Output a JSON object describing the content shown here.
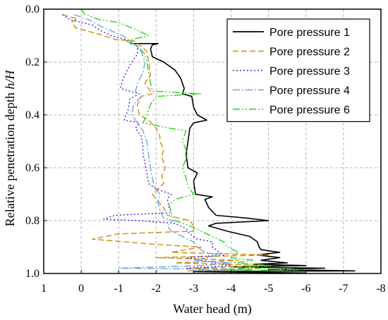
{
  "chart_data": {
    "type": "line",
    "xlabel": "Water head (m)",
    "ylabel": "Relative penetration depth h/H",
    "xlim": [
      1,
      -8
    ],
    "ylim": [
      0.0,
      1.0
    ],
    "x_ticks": [
      "1",
      "0",
      "-1",
      "-2",
      "-3",
      "-4",
      "-5",
      "-6",
      "-7",
      "-8"
    ],
    "y_ticks": [
      "0.0",
      "0.2",
      "0.4",
      "0.6",
      "0.8",
      "1.0"
    ],
    "grid": true,
    "legend_position": "top-right",
    "series": [
      {
        "name": "Pore pressure 1",
        "color": "#000000",
        "dash": "solid",
        "points": [
          [
            -1.3,
            0.13
          ],
          [
            -1.5,
            0.13
          ],
          [
            -1.8,
            0.13
          ],
          [
            -2.05,
            0.13
          ],
          [
            -1.9,
            0.135
          ],
          [
            -1.85,
            0.15
          ],
          [
            -1.9,
            0.18
          ],
          [
            -2.2,
            0.2
          ],
          [
            -2.5,
            0.23
          ],
          [
            -2.65,
            0.26
          ],
          [
            -2.75,
            0.3
          ],
          [
            -2.7,
            0.32
          ],
          [
            -2.95,
            0.33
          ],
          [
            -3.0,
            0.37
          ],
          [
            -3.1,
            0.4
          ],
          [
            -3.35,
            0.42
          ],
          [
            -3.0,
            0.43
          ],
          [
            -2.9,
            0.45
          ],
          [
            -2.85,
            0.5
          ],
          [
            -2.8,
            0.55
          ],
          [
            -2.85,
            0.6
          ],
          [
            -3.1,
            0.62
          ],
          [
            -3.0,
            0.65
          ],
          [
            -3.05,
            0.7
          ],
          [
            -3.5,
            0.71
          ],
          [
            -3.3,
            0.72
          ],
          [
            -3.4,
            0.75
          ],
          [
            -3.6,
            0.78
          ],
          [
            -4.4,
            0.79
          ],
          [
            -5.0,
            0.8
          ],
          [
            -3.6,
            0.81
          ],
          [
            -3.4,
            0.82
          ],
          [
            -3.9,
            0.84
          ],
          [
            -4.5,
            0.86
          ],
          [
            -4.7,
            0.88
          ],
          [
            -4.75,
            0.9
          ],
          [
            -4.8,
            0.91
          ],
          [
            -5.3,
            0.92
          ],
          [
            -4.7,
            0.93
          ],
          [
            -5.3,
            0.94
          ],
          [
            -4.8,
            0.95
          ],
          [
            -5.5,
            0.96
          ],
          [
            -4.6,
            0.965
          ],
          [
            -6.0,
            0.97
          ],
          [
            -4.0,
            0.975
          ],
          [
            -6.5,
            0.98
          ],
          [
            -5.0,
            0.985
          ],
          [
            -7.3,
            0.99
          ],
          [
            -3.0,
            0.993
          ],
          [
            -6.0,
            0.998
          ]
        ]
      },
      {
        "name": "Pore pressure 2",
        "color": "#d08a10",
        "dash": "8,4",
        "points": [
          [
            0.5,
            0.02
          ],
          [
            0.3,
            0.03
          ],
          [
            0.1,
            0.035
          ],
          [
            0.25,
            0.05
          ],
          [
            0.15,
            0.07
          ],
          [
            -0.6,
            0.1
          ],
          [
            -0.9,
            0.115
          ],
          [
            -1.4,
            0.12
          ],
          [
            -1.6,
            0.14
          ],
          [
            -1.75,
            0.16
          ],
          [
            -1.8,
            0.2
          ],
          [
            -1.85,
            0.25
          ],
          [
            -1.7,
            0.28
          ],
          [
            -1.8,
            0.3
          ],
          [
            -1.9,
            0.32
          ],
          [
            -1.6,
            0.33
          ],
          [
            -1.5,
            0.36
          ],
          [
            -1.55,
            0.4
          ],
          [
            -1.8,
            0.42
          ],
          [
            -2.0,
            0.45
          ],
          [
            -2.1,
            0.48
          ],
          [
            -2.1,
            0.5
          ],
          [
            -2.2,
            0.53
          ],
          [
            -2.15,
            0.56
          ],
          [
            -2.25,
            0.6
          ],
          [
            -2.15,
            0.63
          ],
          [
            -2.2,
            0.66
          ],
          [
            -2.05,
            0.68
          ],
          [
            -1.9,
            0.7
          ],
          [
            -2.0,
            0.72
          ],
          [
            -2.2,
            0.75
          ],
          [
            -2.3,
            0.78
          ],
          [
            -2.6,
            0.79
          ],
          [
            -2.9,
            0.8
          ],
          [
            -3.0,
            0.82
          ],
          [
            -3.0,
            0.84
          ],
          [
            -1.0,
            0.85
          ],
          [
            -0.3,
            0.87
          ],
          [
            -2.0,
            0.89
          ],
          [
            -3.2,
            0.9
          ],
          [
            -2.4,
            0.92
          ],
          [
            -5.0,
            0.93
          ],
          [
            -2.0,
            0.94
          ],
          [
            -4.2,
            0.95
          ],
          [
            -2.5,
            0.96
          ],
          [
            -5.0,
            0.97
          ],
          [
            -3.0,
            0.98
          ],
          [
            -4.6,
            0.985
          ],
          [
            -2.8,
            0.99
          ]
        ]
      },
      {
        "name": "Pore pressure 3",
        "color": "#4b17d9",
        "dash": "2,3",
        "points": [
          [
            0.5,
            0.02
          ],
          [
            0.3,
            0.04
          ],
          [
            -0.3,
            0.06
          ],
          [
            -0.5,
            0.08
          ],
          [
            -0.8,
            0.1
          ],
          [
            -1.3,
            0.12
          ],
          [
            -1.5,
            0.14
          ],
          [
            -1.5,
            0.17
          ],
          [
            -1.35,
            0.2
          ],
          [
            -1.2,
            0.24
          ],
          [
            -1.1,
            0.27
          ],
          [
            -1.05,
            0.3
          ],
          [
            -1.3,
            0.31
          ],
          [
            -1.55,
            0.32
          ],
          [
            -1.3,
            0.34
          ],
          [
            -1.25,
            0.38
          ],
          [
            -1.15,
            0.42
          ],
          [
            -1.55,
            0.43
          ],
          [
            -1.45,
            0.45
          ],
          [
            -1.6,
            0.48
          ],
          [
            -1.65,
            0.52
          ],
          [
            -1.65,
            0.55
          ],
          [
            -1.7,
            0.58
          ],
          [
            -1.75,
            0.62
          ],
          [
            -1.8,
            0.66
          ],
          [
            -2.0,
            0.68
          ],
          [
            -2.4,
            0.7
          ],
          [
            -2.3,
            0.72
          ],
          [
            -2.35,
            0.75
          ],
          [
            -2.4,
            0.77
          ],
          [
            -0.9,
            0.78
          ],
          [
            -0.6,
            0.795
          ],
          [
            -1.5,
            0.8
          ],
          [
            -2.5,
            0.81
          ],
          [
            -2.8,
            0.83
          ],
          [
            -2.9,
            0.85
          ],
          [
            -3.1,
            0.87
          ],
          [
            -3.5,
            0.88
          ],
          [
            -3.5,
            0.9
          ],
          [
            -3.6,
            0.91
          ],
          [
            -3.8,
            0.93
          ],
          [
            -2.8,
            0.94
          ],
          [
            -3.2,
            0.95
          ],
          [
            -4.0,
            0.97
          ],
          [
            -2.8,
            0.98
          ],
          [
            -3.5,
            0.99
          ]
        ]
      },
      {
        "name": "Pore pressure 4",
        "color": "#6aa6e0",
        "dash": "10,3,2,3",
        "points": [
          [
            0.2,
            0.02
          ],
          [
            -0.2,
            0.04
          ],
          [
            -0.6,
            0.07
          ],
          [
            -1.1,
            0.1
          ],
          [
            -1.4,
            0.13
          ],
          [
            -1.6,
            0.16
          ],
          [
            -1.7,
            0.2
          ],
          [
            -1.65,
            0.24
          ],
          [
            -1.5,
            0.28
          ],
          [
            -1.45,
            0.31
          ],
          [
            -1.6,
            0.33
          ],
          [
            -1.4,
            0.36
          ],
          [
            -1.35,
            0.4
          ],
          [
            -1.5,
            0.43
          ],
          [
            -1.65,
            0.46
          ],
          [
            -1.75,
            0.5
          ],
          [
            -1.8,
            0.55
          ],
          [
            -1.85,
            0.6
          ],
          [
            -1.9,
            0.64
          ],
          [
            -1.95,
            0.67
          ],
          [
            -2.1,
            0.7
          ],
          [
            -2.05,
            0.73
          ],
          [
            -2.1,
            0.76
          ],
          [
            -2.2,
            0.79
          ],
          [
            -2.45,
            0.8
          ],
          [
            -2.3,
            0.82
          ],
          [
            -2.4,
            0.84
          ],
          [
            -2.7,
            0.86
          ],
          [
            -3.0,
            0.88
          ],
          [
            -3.1,
            0.9
          ],
          [
            -3.3,
            0.92
          ],
          [
            -3.7,
            0.93
          ],
          [
            -3.0,
            0.95
          ],
          [
            -4.0,
            0.96
          ],
          [
            -3.2,
            0.97
          ],
          [
            -1.0,
            0.98
          ],
          [
            -4.5,
            0.985
          ],
          [
            -3.0,
            0.99
          ]
        ]
      },
      {
        "name": "Pore pressure 6",
        "color": "#2ccd1f",
        "dash": "10,3,2,3,2,3",
        "points": [
          [
            0.0,
            0.0
          ],
          [
            -0.1,
            0.02
          ],
          [
            -0.5,
            0.04
          ],
          [
            -1.0,
            0.05
          ],
          [
            -1.5,
            0.08
          ],
          [
            -1.8,
            0.1
          ],
          [
            -1.2,
            0.12
          ],
          [
            -1.5,
            0.14
          ],
          [
            -1.7,
            0.17
          ],
          [
            -1.75,
            0.2
          ],
          [
            -1.8,
            0.24
          ],
          [
            -1.85,
            0.28
          ],
          [
            -1.9,
            0.31
          ],
          [
            -3.2,
            0.32
          ],
          [
            -2.0,
            0.33
          ],
          [
            -1.85,
            0.36
          ],
          [
            -1.75,
            0.4
          ],
          [
            -1.65,
            0.43
          ],
          [
            -2.35,
            0.45
          ],
          [
            -2.8,
            0.46
          ],
          [
            -2.7,
            0.5
          ],
          [
            -2.85,
            0.55
          ],
          [
            -2.7,
            0.6
          ],
          [
            -2.8,
            0.64
          ],
          [
            -2.85,
            0.67
          ],
          [
            -3.0,
            0.7
          ],
          [
            -2.5,
            0.72
          ],
          [
            -2.35,
            0.74
          ],
          [
            -2.4,
            0.77
          ],
          [
            -2.5,
            0.8
          ],
          [
            -2.9,
            0.82
          ],
          [
            -3.2,
            0.84
          ],
          [
            -3.5,
            0.86
          ],
          [
            -3.8,
            0.88
          ],
          [
            -3.9,
            0.9
          ],
          [
            -4.2,
            0.92
          ],
          [
            -4.0,
            0.94
          ],
          [
            -4.6,
            0.95
          ],
          [
            -4.1,
            0.96
          ],
          [
            -5.1,
            0.97
          ],
          [
            -4.2,
            0.98
          ],
          [
            -6.1,
            0.985
          ],
          [
            -3.7,
            0.99
          ]
        ]
      }
    ]
  }
}
